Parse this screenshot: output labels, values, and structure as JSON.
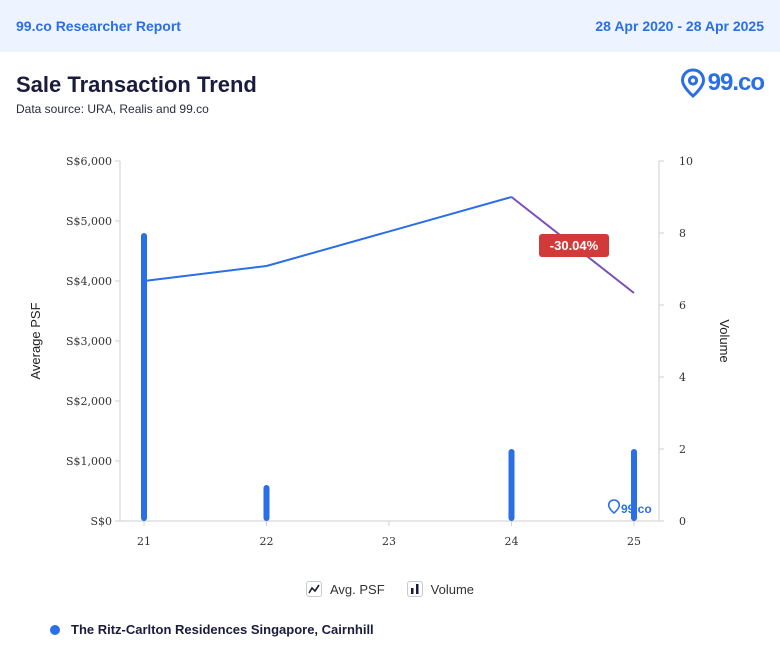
{
  "header": {
    "report_title": "99.co Researcher Report",
    "date_range": "28 Apr 2020 - 28 Apr 2025"
  },
  "page": {
    "title": "Sale Transaction Trend",
    "subtitle": "Data source: URA, Realis and 99.co",
    "brand_logo": "99.co"
  },
  "chart_data": {
    "type": "line+bar",
    "categories": [
      "21",
      "22",
      "23",
      "24",
      "25"
    ],
    "series": [
      {
        "name": "Avg. PSF",
        "type": "line",
        "axis": "left",
        "values": [
          4000,
          4250,
          null,
          5400,
          3800
        ],
        "color": "#2a6ee8"
      },
      {
        "name": "Volume",
        "type": "bar",
        "axis": "right",
        "values": [
          8,
          1,
          0,
          2,
          2
        ],
        "color": "#2a6ee8"
      }
    ],
    "ylabel": "Average PSF",
    "y2label": "Volume",
    "yticks": [
      "S$0",
      "S$1,000",
      "S$2,000",
      "S$3,000",
      "S$4,000",
      "S$5,000",
      "S$6,000"
    ],
    "y2ticks": [
      "0",
      "2",
      "4",
      "6",
      "8",
      "10"
    ],
    "ylim": [
      0,
      6000
    ],
    "y2lim": [
      0,
      10
    ],
    "annotation": {
      "text": "-30.04%",
      "color": "#d23a3a"
    },
    "watermark": "99.co",
    "legend": [
      {
        "label": "Avg. PSF",
        "icon": "line-chart-icon"
      },
      {
        "label": "Volume",
        "icon": "bar-chart-icon"
      }
    ]
  },
  "project": {
    "name": "The Ritz-Carlton Residences Singapore, Cairnhill",
    "color": "#2a6ee8"
  }
}
